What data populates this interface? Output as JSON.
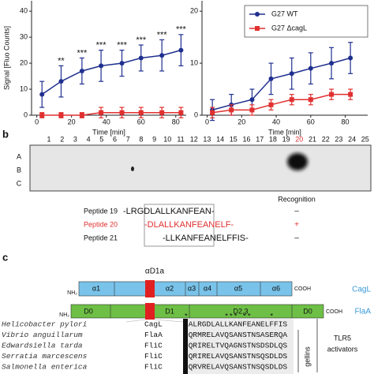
{
  "chart_data": [
    {
      "type": "line",
      "y_label": "Signal [Fluo Counts]",
      "x_label": "Time [min]",
      "xlim": [
        -3,
        86
      ],
      "ylim": [
        0,
        44
      ],
      "xticks": [
        0,
        20,
        40,
        60,
        80
      ],
      "yticks": [
        0,
        10,
        20,
        30,
        40
      ],
      "series": [
        {
          "color": "#1f2f8f",
          "marker": "circle",
          "x": [
            3,
            14,
            26,
            37,
            49,
            60,
            72,
            83
          ],
          "values": [
            8,
            13,
            17,
            19,
            20,
            22,
            23,
            25
          ],
          "errors": [
            5,
            6,
            5,
            6,
            5,
            5,
            6,
            6
          ]
        },
        {
          "color": "#e03030",
          "marker": "square",
          "x": [
            3,
            14,
            26,
            37,
            49,
            60,
            72,
            83
          ],
          "values": [
            0,
            0,
            0,
            1,
            1,
            1,
            1,
            1
          ],
          "errors": [
            1,
            1,
            1,
            2,
            2,
            2,
            2,
            2
          ]
        }
      ],
      "annotations": [
        {
          "x": 14,
          "text": "**"
        },
        {
          "x": 26,
          "text": "***"
        },
        {
          "x": 37,
          "text": "***"
        },
        {
          "x": 49,
          "text": "***"
        },
        {
          "x": 60,
          "text": "***"
        },
        {
          "x": 72,
          "text": "***"
        },
        {
          "x": 83,
          "text": "***"
        }
      ]
    },
    {
      "type": "line",
      "x_label": "Time [min]",
      "xlim": [
        -3,
        93
      ],
      "ylim": [
        0,
        22
      ],
      "xticks": [
        0,
        20,
        40,
        60,
        80
      ],
      "yticks": [
        0,
        10,
        20
      ],
      "legend": "upper right",
      "series": [
        {
          "name": "G27 WT",
          "color": "#1f2f8f",
          "marker": "circle",
          "x": [
            3,
            14,
            26,
            37,
            49,
            60,
            72,
            83
          ],
          "values": [
            1,
            2,
            3,
            7,
            8,
            9,
            10,
            11
          ],
          "errors": [
            2,
            2,
            2,
            3,
            3,
            3,
            3,
            3
          ]
        },
        {
          "name": "G27 ΔcagL",
          "color": "#e03030",
          "marker": "square",
          "x": [
            3,
            14,
            26,
            37,
            49,
            60,
            72,
            83
          ],
          "values": [
            0.5,
            1,
            1,
            2,
            3,
            3,
            4,
            4
          ],
          "errors": [
            1,
            1,
            1,
            1,
            1,
            1,
            1,
            1
          ]
        }
      ]
    }
  ],
  "panel_b": {
    "label": "b",
    "columns": [
      {
        "label": "1"
      },
      {
        "label": "2"
      },
      {
        "label": "3"
      },
      {
        "label": "4"
      },
      {
        "label": "5"
      },
      {
        "label": "6"
      },
      {
        "label": "7"
      },
      {
        "label": "8"
      },
      {
        "label": "9"
      },
      {
        "label": "10"
      },
      {
        "label": "11"
      },
      {
        "label": "12"
      },
      {
        "label": "13"
      },
      {
        "label": "14"
      },
      {
        "label": "15"
      },
      {
        "label": "16"
      },
      {
        "label": "17"
      },
      {
        "label": "18"
      },
      {
        "label": "19"
      },
      {
        "label": "20",
        "color": "#e03030"
      },
      {
        "label": "21"
      },
      {
        "label": "22"
      },
      {
        "label": "23"
      },
      {
        "label": "24"
      },
      {
        "label": "25"
      }
    ],
    "rows": [
      "A",
      "B",
      "C"
    ],
    "recognition_title": "Recognition",
    "peptides": [
      {
        "name": "Peptide 19",
        "sequence": "-LRGDLALLKANFEAN-",
        "recognition": "–",
        "color": "#111111"
      },
      {
        "name": "Peptide 20",
        "sequence": "-DLALLKANFEANELF-",
        "recognition": "+",
        "color": "#e03030"
      },
      {
        "name": "Peptide 21",
        "sequence": "-LLKANFEANELFFIS-",
        "recognition": "–",
        "color": "#111111"
      }
    ]
  },
  "panel_c": {
    "label": "c",
    "motif": "αD1a",
    "n_term": "NH₂",
    "c_term": "COOH",
    "cagl": {
      "name": "CagL",
      "domains": [
        "α1",
        "α2",
        "α3",
        "α4",
        "α5",
        "α6"
      ]
    },
    "flaa": {
      "name": "FlaA",
      "domains": [
        "D0",
        "D1",
        "D2,3",
        "D0"
      ]
    },
    "conservation": "*        *** **    *",
    "alignment": [
      {
        "species": "Helicobacter pylori",
        "protein": "CagL",
        "sequence": "IALRGDLALLKANFEANELFFIS"
      },
      {
        "species": "Vibrio anguillarum",
        "protein": "FlaA",
        "sequence": "LQRMRELAVQSANSTNSASERQA"
      },
      {
        "species": "Edwardsiella tarda",
        "protein": "FliC",
        "sequence": "LQRIRELTVQAGNSTNSDSDLQS"
      },
      {
        "species": "Serratia marcescens",
        "protein": "FliC",
        "sequence": "LQRIRELAVQSANSTNSQSDLDS"
      },
      {
        "species": "Salmonella enterica",
        "protein": "FliC",
        "sequence": "LQRVRELAVQSANSTNSQSDLDS"
      }
    ],
    "group_label": "gellins",
    "activity_label": [
      "TLR5",
      "activators"
    ]
  }
}
